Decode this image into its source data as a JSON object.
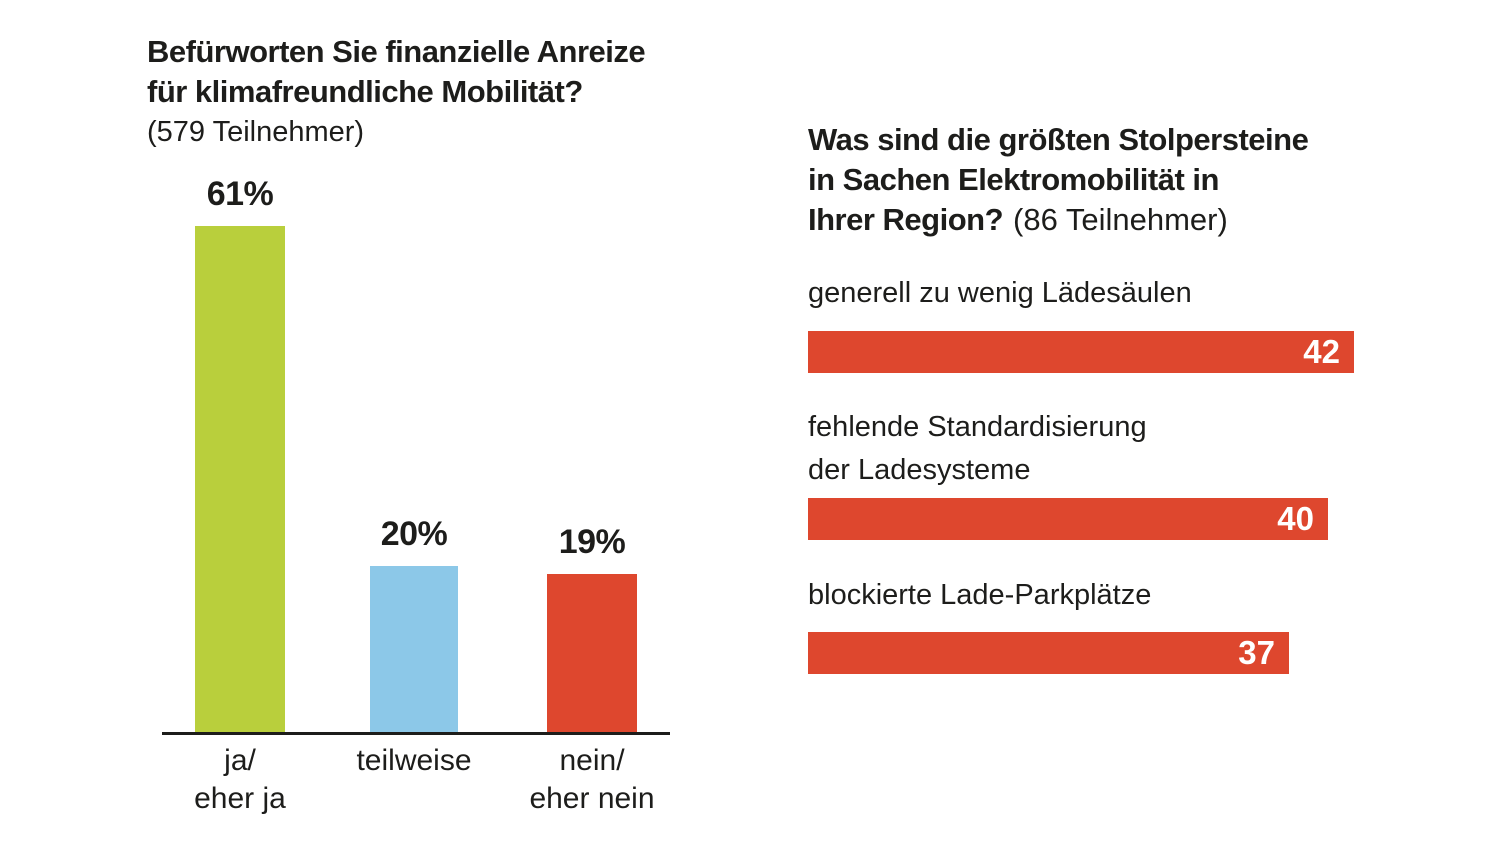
{
  "page": {
    "background_color": "#ffffff",
    "text_color": "#1d1d1b"
  },
  "left_chart": {
    "title": "Befürworten Sie finanzielle Anreize\nfür klimafreundliche Mobilität?",
    "subtitle": "(579 Teilnehmer)",
    "value_labels": [
      "61%",
      "20%",
      "19%"
    ],
    "category_labels": [
      "ja/\neher ja",
      "teilweise",
      "nein/\neher nein"
    ]
  },
  "right_chart": {
    "title_bold": "Was sind die größten Stolpersteine\nin Sachen Elektromobilität in\nIhrer Region?",
    "title_suffix": "(86 Teilnehmer)",
    "rows": [
      {
        "label": "generell zu wenig Lädesäulen",
        "value_label": "42"
      },
      {
        "label": "fehlende Standardisierung\nder Ladesysteme",
        "value_label": "40"
      },
      {
        "label": "blockierte Lade-Parkplätze",
        "value_label": "37"
      }
    ]
  },
  "chart_data": [
    {
      "type": "bar",
      "title": "Befürworten Sie finanzielle Anreize für klimafreundliche Mobilität?",
      "subtitle": "(579 Teilnehmer)",
      "categories": [
        "ja/eher ja",
        "teilweise",
        "nein/eher nein"
      ],
      "values": [
        61,
        20,
        19
      ],
      "unit": "%",
      "value_labels": [
        "61%",
        "20%",
        "19%"
      ],
      "bar_colors": [
        "#b9cf3c",
        "#8cc8e8",
        "#de472e"
      ],
      "ylim": [
        0,
        61
      ],
      "grid": false,
      "legend": false,
      "axis_line_color": "#1d1d1b"
    },
    {
      "type": "bar-horizontal",
      "title": "Was sind die größten Stolpersteine in Sachen Elektromobilität in Ihrer Region?",
      "subtitle": "(86 Teilnehmer)",
      "categories": [
        "generell zu wenig Lädesäulen",
        "fehlende Standardisierung der Ladesysteme",
        "blockierte Lade-Parkplätze"
      ],
      "values": [
        42,
        40,
        37
      ],
      "value_labels": [
        "42",
        "40",
        "37"
      ],
      "bar_color": "#de472e",
      "value_label_color": "#ffffff",
      "xlim": [
        0,
        42
      ],
      "grid": false,
      "legend": false
    }
  ]
}
